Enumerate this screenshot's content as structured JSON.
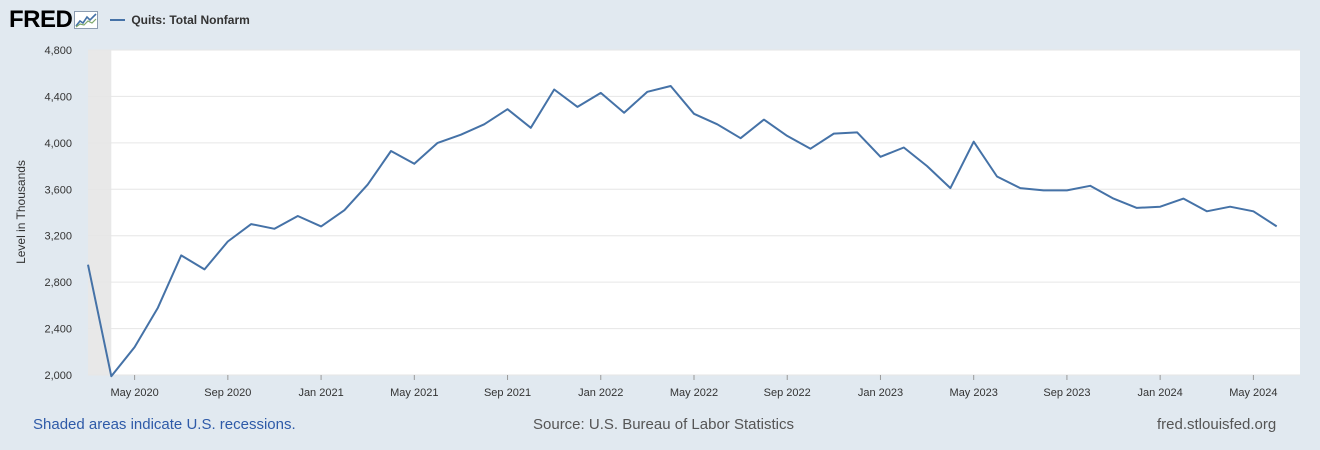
{
  "header": {
    "logo_text": "FRED",
    "legend_label": "Quits: Total Nonfarm"
  },
  "footer": {
    "recession_note": "Shaded areas indicate U.S. recessions.",
    "source": "Source: U.S. Bureau of Labor Statistics",
    "site": "fred.stlouisfed.org"
  },
  "colors": {
    "line": "#4572a7",
    "background": "#e1e9f0",
    "plot_area": "#ffffff",
    "recession_shade": "#e8e8e8"
  },
  "chart_data": {
    "type": "line",
    "title": "",
    "xlabel": "",
    "ylabel": "Level in Thousands",
    "ylim": [
      2000,
      4800
    ],
    "xlim": [
      "2020-03",
      "2024-07"
    ],
    "grid": true,
    "legend_position": "top-left",
    "y_ticks": [
      {
        "value": 2000,
        "label": "2,000"
      },
      {
        "value": 2400,
        "label": "2,400"
      },
      {
        "value": 2800,
        "label": "2,800"
      },
      {
        "value": 3200,
        "label": "3,200"
      },
      {
        "value": 3600,
        "label": "3,600"
      },
      {
        "value": 4000,
        "label": "4,000"
      },
      {
        "value": 4400,
        "label": "4,400"
      },
      {
        "value": 4800,
        "label": "4,800"
      }
    ],
    "x_ticks": [
      {
        "value": "2020-05",
        "label": "May 2020"
      },
      {
        "value": "2020-09",
        "label": "Sep 2020"
      },
      {
        "value": "2021-01",
        "label": "Jan 2021"
      },
      {
        "value": "2021-05",
        "label": "May 2021"
      },
      {
        "value": "2021-09",
        "label": "Sep 2021"
      },
      {
        "value": "2022-01",
        "label": "Jan 2022"
      },
      {
        "value": "2022-05",
        "label": "May 2022"
      },
      {
        "value": "2022-09",
        "label": "Sep 2022"
      },
      {
        "value": "2023-01",
        "label": "Jan 2023"
      },
      {
        "value": "2023-05",
        "label": "May 2023"
      },
      {
        "value": "2023-09",
        "label": "Sep 2023"
      },
      {
        "value": "2024-01",
        "label": "Jan 2024"
      },
      {
        "value": "2024-05",
        "label": "May 2024"
      }
    ],
    "recessions": [
      {
        "start": "2020-03",
        "end": "2020-04"
      }
    ],
    "series": [
      {
        "name": "Quits: Total Nonfarm",
        "x": [
          "2020-03",
          "2020-04",
          "2020-05",
          "2020-06",
          "2020-07",
          "2020-08",
          "2020-09",
          "2020-10",
          "2020-11",
          "2020-12",
          "2021-01",
          "2021-02",
          "2021-03",
          "2021-04",
          "2021-05",
          "2021-06",
          "2021-07",
          "2021-08",
          "2021-09",
          "2021-10",
          "2021-11",
          "2021-12",
          "2022-01",
          "2022-02",
          "2022-03",
          "2022-04",
          "2022-05",
          "2022-06",
          "2022-07",
          "2022-08",
          "2022-09",
          "2022-10",
          "2022-11",
          "2022-12",
          "2023-01",
          "2023-02",
          "2023-03",
          "2023-04",
          "2023-05",
          "2023-06",
          "2023-07",
          "2023-08",
          "2023-09",
          "2023-10",
          "2023-11",
          "2023-12",
          "2024-01",
          "2024-02",
          "2024-03",
          "2024-04",
          "2024-05",
          "2024-06"
        ],
        "values": [
          2950,
          1990,
          2240,
          2580,
          3030,
          2910,
          3150,
          3300,
          3260,
          3370,
          3280,
          3420,
          3640,
          3930,
          3820,
          4000,
          4070,
          4160,
          4290,
          4130,
          4460,
          4310,
          4430,
          4260,
          4440,
          4490,
          4250,
          4160,
          4040,
          4200,
          4060,
          3950,
          4080,
          4090,
          3880,
          3960,
          3800,
          3610,
          4010,
          3710,
          3610,
          3590,
          3590,
          3630,
          3520,
          3440,
          3450,
          3520,
          3410,
          3450,
          3410,
          3280
        ]
      }
    ]
  }
}
